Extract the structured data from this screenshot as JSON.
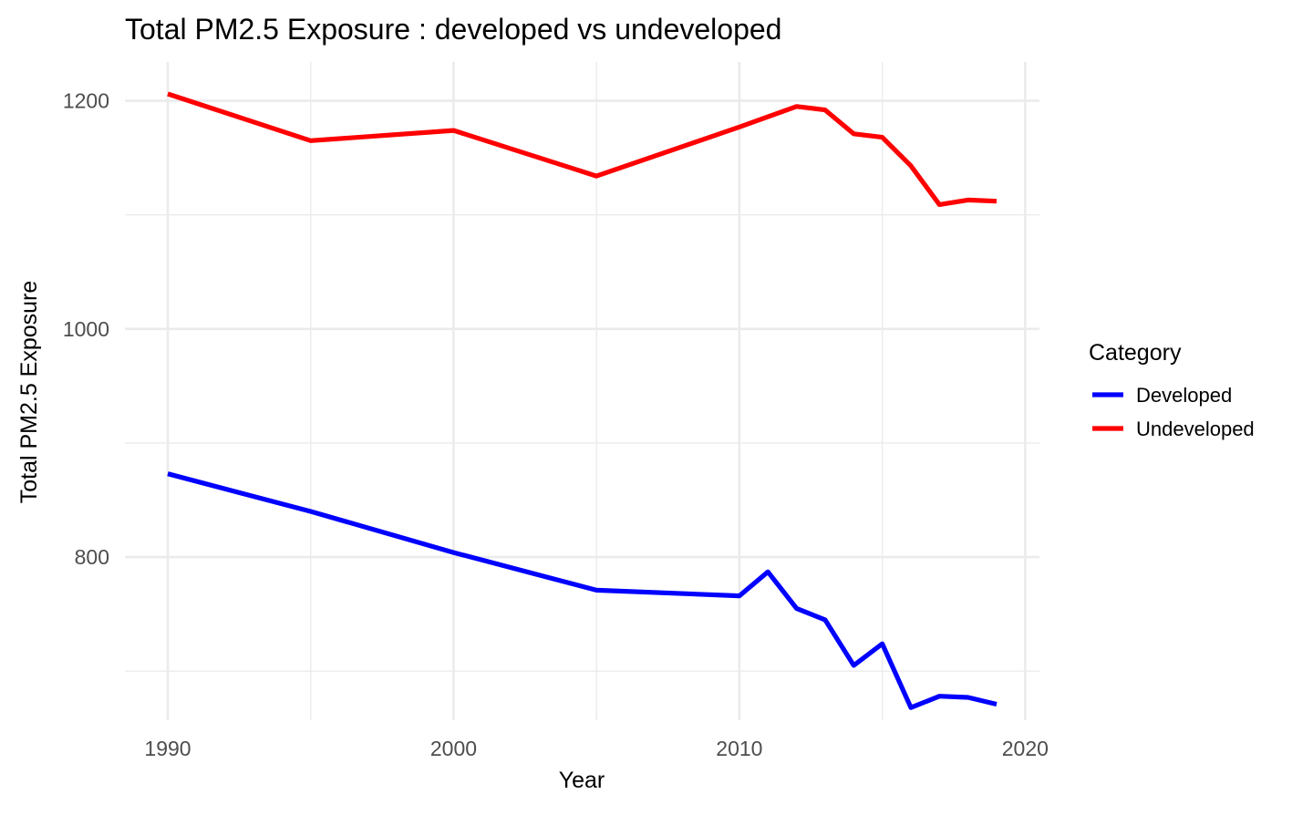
{
  "chart_data": {
    "type": "line",
    "title": "Total PM2.5 Exposure : developed vs undeveloped",
    "xlabel": "Year",
    "ylabel": "Total PM2.5 Exposure",
    "xlim": [
      1988.5,
      2020.5
    ],
    "ylim": [
      657,
      1234
    ],
    "x_ticks": [
      1990,
      2000,
      2010,
      2020
    ],
    "y_ticks": [
      800,
      1000,
      1200
    ],
    "x_minor": [
      1995,
      2005,
      2015
    ],
    "y_minor": [
      700,
      900,
      1100
    ],
    "grid": true,
    "legend": {
      "title": "Category",
      "position": "right"
    },
    "series": [
      {
        "name": "Developed",
        "color": "#0000ff",
        "points": [
          [
            1990,
            873
          ],
          [
            1995,
            840
          ],
          [
            2000,
            804
          ],
          [
            2005,
            771
          ],
          [
            2010,
            766
          ],
          [
            2011,
            787
          ],
          [
            2012,
            755
          ],
          [
            2013,
            745
          ],
          [
            2014,
            705
          ],
          [
            2015,
            724
          ],
          [
            2016,
            668
          ],
          [
            2017,
            678
          ],
          [
            2018,
            677
          ],
          [
            2019,
            671
          ]
        ]
      },
      {
        "name": "Undeveloped",
        "color": "#ff0000",
        "points": [
          [
            1990,
            1206
          ],
          [
            1995,
            1165
          ],
          [
            2000,
            1174
          ],
          [
            2005,
            1134
          ],
          [
            2010,
            1177
          ],
          [
            2012,
            1195
          ],
          [
            2013,
            1192
          ],
          [
            2014,
            1171
          ],
          [
            2015,
            1168
          ],
          [
            2016,
            1143
          ],
          [
            2017,
            1109
          ],
          [
            2018,
            1113
          ],
          [
            2019,
            1112
          ]
        ]
      }
    ]
  }
}
